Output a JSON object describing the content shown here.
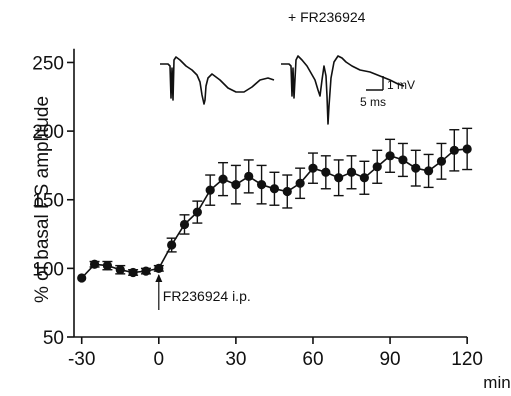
{
  "chart_data": {
    "type": "line",
    "title": "",
    "xlabel": "min",
    "ylabel": "% of basal PS amplitude",
    "xlim": [
      -33,
      125
    ],
    "ylim": [
      50,
      262
    ],
    "x_ticks": [
      -30,
      0,
      30,
      60,
      90,
      120
    ],
    "x_tick_labels": [
      "-30",
      "0",
      "30",
      "60",
      "90",
      "120"
    ],
    "y_ticks": [
      50,
      100,
      150,
      200,
      250
    ],
    "y_tick_labels": [
      "50",
      "100",
      "150",
      "200",
      "250"
    ],
    "grid": false,
    "legend": "none",
    "series": [
      {
        "x": [
          -30,
          -25,
          -20,
          -15,
          -10,
          -5,
          0,
          5,
          10,
          15,
          20,
          25,
          30,
          35,
          40,
          45,
          50,
          55,
          60,
          65,
          70,
          75,
          80,
          85,
          90,
          95,
          100,
          105,
          110,
          115,
          120
        ],
        "values": [
          93,
          103,
          102,
          99,
          97,
          98,
          100,
          117,
          132,
          141,
          157,
          165,
          161,
          167,
          161,
          158,
          156,
          162,
          173,
          170,
          166,
          170,
          166,
          174,
          182,
          179,
          173,
          171,
          178,
          186,
          187
        ],
        "error": [
          0,
          2,
          3,
          3,
          2,
          2,
          2,
          5,
          7,
          8,
          11,
          12,
          14,
          12,
          14,
          12,
          12,
          11,
          11,
          12,
          13,
          12,
          12,
          12,
          12,
          12,
          13,
          12,
          13,
          15,
          15
        ]
      }
    ],
    "annotations": {
      "drug_marker": "FR236924 i.p.",
      "drug_time": 0,
      "traces_header": "+ FR236924",
      "scale_voltage": "1 mV",
      "scale_time": "5 ms"
    },
    "colors": {
      "ink": "#111111"
    }
  }
}
